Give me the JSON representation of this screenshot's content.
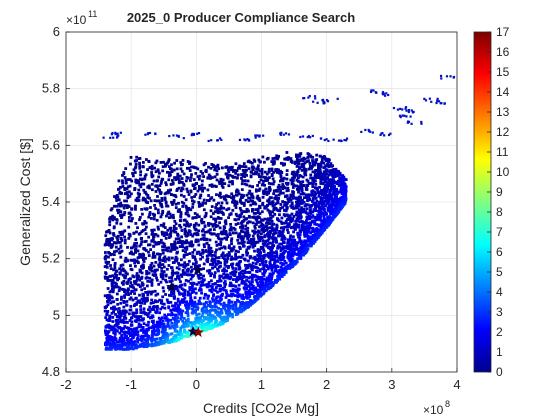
{
  "chart_data": {
    "type": "scatter",
    "title": "2025_0 Producer Compliance Search",
    "xlabel": "Credits [CO2e Mg]",
    "ylabel": "Generalized Cost [$]",
    "x_exponent_label": "×10",
    "x_exponent": "8",
    "y_exponent_label": "×10",
    "y_exponent": "11",
    "xlim": [
      -2,
      4
    ],
    "ylim": [
      4.8,
      6
    ],
    "xticks": [
      "-2",
      "-1",
      "0",
      "1",
      "2",
      "3",
      "4"
    ],
    "yticks": [
      "4.8",
      "5",
      "5.2",
      "5.4",
      "5.6",
      "5.8",
      "6"
    ],
    "grid": true,
    "colorbar": {
      "range": [
        0,
        17
      ],
      "ticks": [
        "0",
        "1",
        "2",
        "3",
        "4",
        "5",
        "6",
        "7",
        "8",
        "9",
        "10",
        "11",
        "12",
        "13",
        "14",
        "15",
        "16",
        "17"
      ],
      "colormap": [
        "#00008f",
        "#0000ff",
        "#0080ff",
        "#00ffff",
        "#80ff80",
        "#ffff00",
        "#ff8000",
        "#ff0000",
        "#800000"
      ]
    },
    "cloud": {
      "lower_envelope": [
        [
          -1.4,
          4.88
        ],
        [
          -1.0,
          4.88
        ],
        [
          -0.6,
          4.895
        ],
        [
          -0.3,
          4.91
        ],
        [
          0.0,
          4.935
        ],
        [
          0.4,
          4.97
        ],
        [
          0.8,
          5.03
        ],
        [
          1.2,
          5.11
        ],
        [
          1.6,
          5.2
        ],
        [
          2.0,
          5.31
        ],
        [
          2.3,
          5.4
        ]
      ],
      "upper_envelope": [
        [
          -1.4,
          5.3
        ],
        [
          -1.2,
          5.47
        ],
        [
          -1.0,
          5.56
        ],
        [
          -0.5,
          5.55
        ],
        [
          0.0,
          5.55
        ],
        [
          0.5,
          5.53
        ],
        [
          1.0,
          5.56
        ],
        [
          1.5,
          5.58
        ],
        [
          2.0,
          5.56
        ],
        [
          2.3,
          5.48
        ]
      ],
      "sparse_points": [
        [
          -1.3,
          5.63
        ],
        [
          -1.2,
          5.64
        ],
        [
          -0.7,
          5.64
        ],
        [
          -0.3,
          5.63
        ],
        [
          0.0,
          5.64
        ],
        [
          0.3,
          5.62
        ],
        [
          0.7,
          5.62
        ],
        [
          1.0,
          5.63
        ],
        [
          1.4,
          5.64
        ],
        [
          1.7,
          5.63
        ],
        [
          2.0,
          5.62
        ],
        [
          2.3,
          5.62
        ],
        [
          2.6,
          5.65
        ],
        [
          2.9,
          5.64
        ],
        [
          2.05,
          5.76
        ],
        [
          1.7,
          5.77
        ],
        [
          1.85,
          5.75
        ],
        [
          2.75,
          5.79
        ],
        [
          2.85,
          5.78
        ],
        [
          3.15,
          5.73
        ],
        [
          3.3,
          5.72
        ],
        [
          3.6,
          5.76
        ],
        [
          3.7,
          5.75
        ],
        [
          3.2,
          5.7
        ],
        [
          3.35,
          5.68
        ],
        [
          3.85,
          5.84
        ]
      ],
      "high_index_region": [
        [
          -0.6,
          4.91
        ],
        [
          0.0,
          4.935
        ],
        [
          0.4,
          4.97
        ]
      ]
    },
    "markers": [
      {
        "x": -0.38,
        "y": 5.1,
        "color": "#00004a"
      },
      {
        "x": 0.02,
        "y": 5.16,
        "color": "#00004a"
      },
      {
        "x": -0.05,
        "y": 4.943,
        "color": "#00004a"
      },
      {
        "x": 0.03,
        "y": 4.94,
        "color": "#8b0000"
      }
    ]
  }
}
